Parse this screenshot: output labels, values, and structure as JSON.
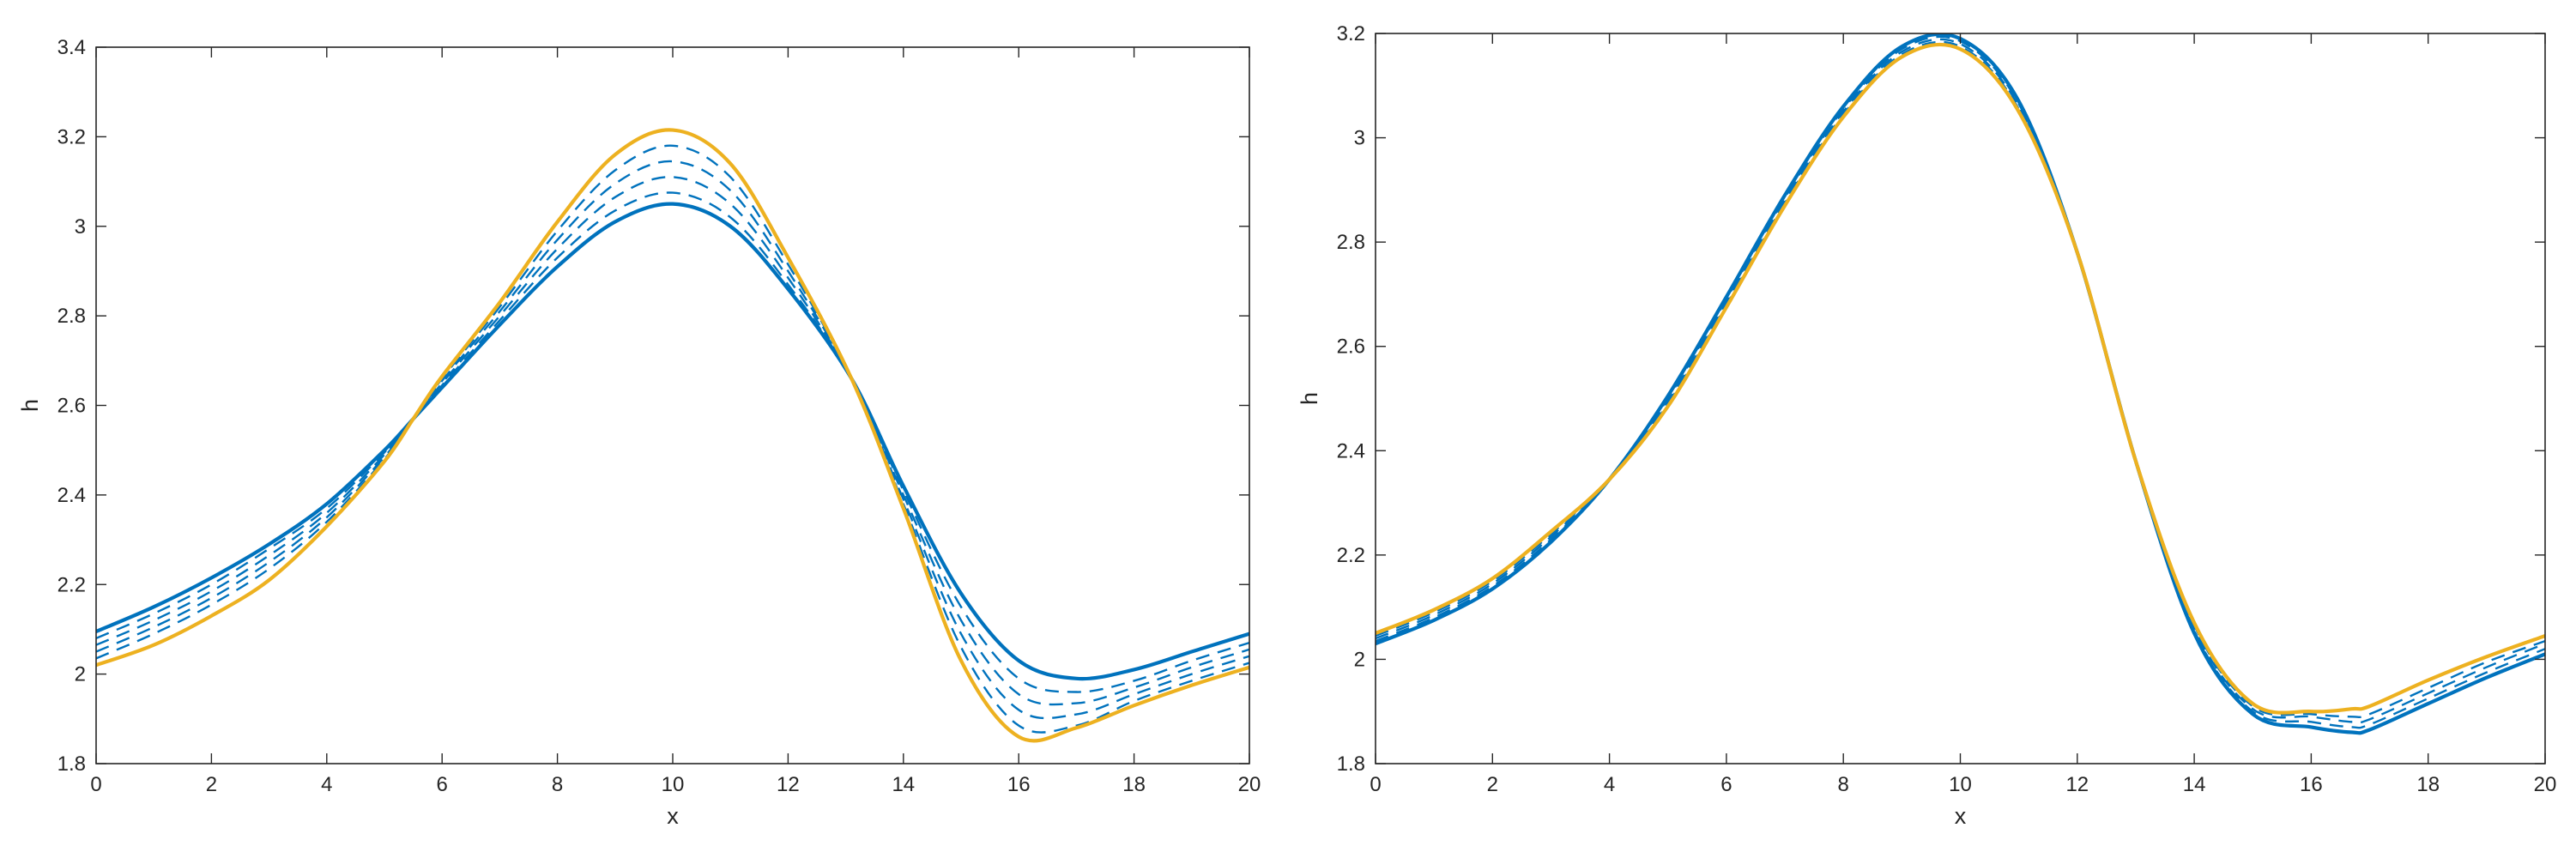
{
  "colors": {
    "blue": "#0072bd",
    "orange": "#edb120",
    "axis": "#262626"
  },
  "chart_data": [
    {
      "type": "line",
      "xlabel": "x",
      "ylabel": "h",
      "xlim": [
        0,
        20
      ],
      "ylim": [
        1.8,
        3.4
      ],
      "xticks": [
        0,
        2,
        4,
        6,
        8,
        10,
        12,
        14,
        16,
        18,
        20
      ],
      "xtick_labels": [
        "0",
        "2",
        "4",
        "6",
        "8",
        "10",
        "12",
        "14",
        "16",
        "18",
        "20"
      ],
      "yticks": [
        1.8,
        2.0,
        2.2,
        2.4,
        2.6,
        2.8,
        3.0,
        3.2,
        3.4
      ],
      "ytick_labels": [
        "1.8",
        "2",
        "2.2",
        "2.4",
        "2.6",
        "2.8",
        "3",
        "3.2",
        "3.4"
      ],
      "grid": false,
      "legend": "none",
      "x": [
        0,
        1,
        2,
        3,
        4,
        5,
        5.5,
        6,
        7,
        8,
        9,
        10,
        11,
        12,
        13.1,
        14,
        15,
        16,
        17,
        18,
        19,
        20
      ],
      "series": [
        {
          "style": "solid-blue",
          "values": [
            2.095,
            2.15,
            2.215,
            2.29,
            2.38,
            2.5,
            2.57,
            2.64,
            2.78,
            2.91,
            3.01,
            3.05,
            3.0,
            2.86,
            2.66,
            2.42,
            2.18,
            2.03,
            1.99,
            2.01,
            2.05,
            2.09
          ]
        },
        {
          "style": "dashed-blue",
          "values": [
            2.08,
            2.135,
            2.2,
            2.28,
            2.37,
            2.495,
            2.57,
            2.645,
            2.79,
            2.93,
            3.035,
            3.075,
            3.02,
            2.87,
            2.66,
            2.41,
            2.15,
            1.99,
            1.96,
            1.985,
            2.03,
            2.07
          ]
        },
        {
          "style": "dashed-blue",
          "values": [
            2.065,
            2.12,
            2.185,
            2.265,
            2.36,
            2.49,
            2.57,
            2.65,
            2.8,
            2.95,
            3.065,
            3.11,
            3.05,
            2.885,
            2.66,
            2.4,
            2.12,
            1.955,
            1.935,
            1.97,
            2.015,
            2.055
          ]
        },
        {
          "style": "dashed-blue",
          "values": [
            2.05,
            2.105,
            2.17,
            2.25,
            2.35,
            2.485,
            2.57,
            2.655,
            2.81,
            2.97,
            3.095,
            3.145,
            3.08,
            2.9,
            2.66,
            2.39,
            2.09,
            1.92,
            1.91,
            1.955,
            2.0,
            2.04
          ]
        },
        {
          "style": "dashed-blue",
          "values": [
            2.035,
            2.09,
            2.155,
            2.235,
            2.34,
            2.48,
            2.57,
            2.66,
            2.82,
            2.99,
            3.125,
            3.18,
            3.11,
            2.915,
            2.66,
            2.38,
            2.06,
            1.885,
            1.885,
            1.94,
            1.985,
            2.025
          ]
        },
        {
          "style": "solid-orange",
          "values": [
            2.02,
            2.065,
            2.13,
            2.21,
            2.33,
            2.475,
            2.57,
            2.665,
            2.83,
            3.01,
            3.16,
            3.215,
            3.14,
            2.93,
            2.66,
            2.37,
            2.03,
            1.86,
            1.88,
            1.93,
            1.975,
            2.015
          ]
        }
      ]
    },
    {
      "type": "line",
      "xlabel": "x",
      "ylabel": "h",
      "xlim": [
        0,
        20
      ],
      "ylim": [
        1.8,
        3.2
      ],
      "xticks": [
        0,
        2,
        4,
        6,
        8,
        10,
        12,
        14,
        16,
        18,
        20
      ],
      "xtick_labels": [
        "0",
        "2",
        "4",
        "6",
        "8",
        "10",
        "12",
        "14",
        "16",
        "18",
        "20"
      ],
      "yticks": [
        1.8,
        2.0,
        2.2,
        2.4,
        2.6,
        2.8,
        3.0,
        3.2
      ],
      "ytick_labels": [
        "1.8",
        "2",
        "2.2",
        "2.4",
        "2.6",
        "2.8",
        "3",
        "3.2"
      ],
      "grid": false,
      "legend": "none",
      "x": [
        0,
        1,
        2,
        3,
        4,
        5,
        6,
        7,
        8,
        9,
        10,
        11,
        12,
        13,
        14,
        15,
        16,
        16.7,
        17,
        18,
        19,
        20
      ],
      "series": [
        {
          "style": "solid-blue",
          "values": [
            2.03,
            2.075,
            2.135,
            2.225,
            2.345,
            2.505,
            2.695,
            2.89,
            3.06,
            3.175,
            3.19,
            3.07,
            2.78,
            2.38,
            2.05,
            1.895,
            1.87,
            1.86,
            1.865,
            1.915,
            1.965,
            2.01
          ]
        },
        {
          "style": "dashed-blue",
          "values": [
            2.035,
            2.08,
            2.14,
            2.23,
            2.345,
            2.5,
            2.69,
            2.885,
            3.055,
            3.17,
            3.185,
            3.065,
            2.78,
            2.38,
            2.055,
            1.9,
            1.88,
            1.87,
            1.875,
            1.925,
            1.975,
            2.02
          ]
        },
        {
          "style": "dashed-blue",
          "values": [
            2.04,
            2.085,
            2.145,
            2.235,
            2.345,
            2.495,
            2.685,
            2.88,
            3.05,
            3.165,
            3.18,
            3.06,
            2.78,
            2.38,
            2.06,
            1.905,
            1.89,
            1.88,
            1.885,
            1.935,
            1.985,
            2.03
          ]
        },
        {
          "style": "dashed-blue",
          "values": [
            2.045,
            2.09,
            2.15,
            2.24,
            2.345,
            2.49,
            2.68,
            2.875,
            3.045,
            3.16,
            3.175,
            3.055,
            2.78,
            2.38,
            2.065,
            1.91,
            1.895,
            1.89,
            1.895,
            1.945,
            1.995,
            2.035
          ]
        },
        {
          "style": "solid-orange",
          "values": [
            2.05,
            2.095,
            2.155,
            2.245,
            2.345,
            2.485,
            2.675,
            2.87,
            3.04,
            3.155,
            3.17,
            3.05,
            2.78,
            2.38,
            2.07,
            1.915,
            1.9,
            1.905,
            1.91,
            1.96,
            2.005,
            2.045
          ]
        }
      ]
    }
  ]
}
